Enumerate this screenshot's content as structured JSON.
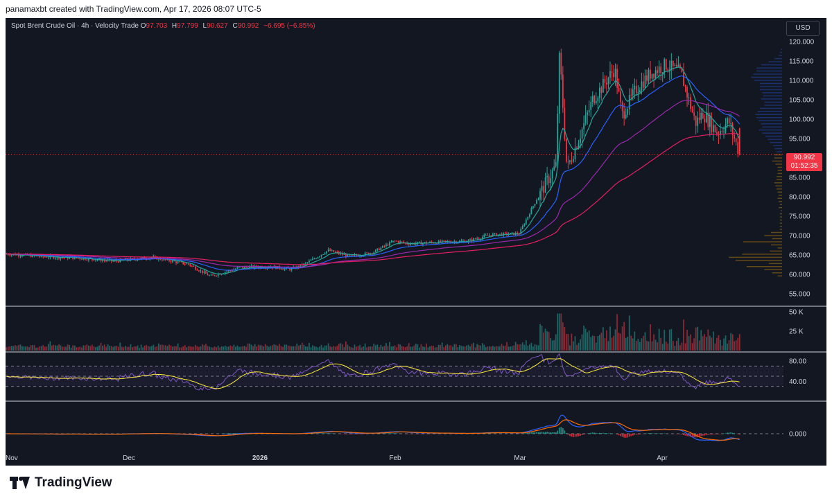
{
  "header": {
    "credit": "panamaxbt created with TradingView.com, Apr 17, 2026 08:07 UTC-5"
  },
  "legend": {
    "symbol": "Spot Brent Crude Oil · 4h · Velocity Trade",
    "o_label": "O",
    "o_value": "97.703",
    "h_label": "H",
    "h_value": "97.799",
    "l_label": "L",
    "l_value": "90.627",
    "c_label": "C",
    "c_value": "90.992",
    "change": "−6.695 (−6.85%)"
  },
  "currency": "USD",
  "last_price": {
    "price": "90.992",
    "countdown": "01:52:35"
  },
  "footer": {
    "brand": "TradingView"
  },
  "colors": {
    "background": "#131722",
    "up": "#26a69a",
    "down": "#f23645",
    "ma_fast": "#26a69a",
    "ma_mid": "#2962ff",
    "ma_slow": "#9c27b0",
    "ma_long": "#e91e63",
    "rsi": "#7e57c2",
    "rsi_ma": "#ffeb3b",
    "macd": "#2962ff",
    "signal": "#ff6d00"
  },
  "chart_data": {
    "type": "candlestick",
    "timeframe": "4h",
    "price_axis": {
      "ticks": [
        "120.000",
        "115.000",
        "110.000",
        "105.000",
        "100.000",
        "95.000",
        "90.000",
        "85.000",
        "80.000",
        "75.000",
        "70.000",
        "65.000",
        "60.000",
        "55.000"
      ],
      "range": [
        52.5,
        122.5
      ]
    },
    "time_axis": {
      "labels": [
        "Nov",
        "Dec",
        "2026",
        "Feb",
        "Mar",
        "Apr"
      ]
    },
    "price_path": [
      [
        0,
        65.3
      ],
      [
        0.05,
        64.6
      ],
      [
        0.1,
        64.2
      ],
      [
        0.15,
        63.4
      ],
      [
        0.2,
        64.4
      ],
      [
        0.25,
        62.6
      ],
      [
        0.28,
        59.5
      ],
      [
        0.32,
        61.8
      ],
      [
        0.36,
        62.0
      ],
      [
        0.39,
        61.3
      ],
      [
        0.41,
        62.8
      ],
      [
        0.44,
        66.2
      ],
      [
        0.47,
        64.6
      ],
      [
        0.5,
        65.6
      ],
      [
        0.53,
        68.6
      ],
      [
        0.55,
        67.9
      ],
      [
        0.6,
        68.4
      ],
      [
        0.63,
        68.6
      ],
      [
        0.66,
        70.2
      ],
      [
        0.7,
        70.5
      ],
      [
        0.72,
        78.0
      ],
      [
        0.75,
        88.0
      ],
      [
        0.755,
        117.0
      ],
      [
        0.765,
        87.0
      ],
      [
        0.785,
        97.0
      ],
      [
        0.8,
        105.0
      ],
      [
        0.83,
        113.0
      ],
      [
        0.84,
        101.0
      ],
      [
        0.86,
        108.0
      ],
      [
        0.88,
        112.0
      ],
      [
        0.9,
        114.0
      ],
      [
        0.92,
        112.0
      ],
      [
        0.94,
        99.0
      ],
      [
        0.95,
        101.5
      ],
      [
        0.97,
        96.5
      ],
      [
        0.985,
        99.5
      ],
      [
        1.0,
        90.99
      ]
    ],
    "volume_axis": {
      "ticks": [
        "50 K",
        "25 K"
      ]
    },
    "rsi": {
      "ticks": [
        "80.00",
        "40.00"
      ],
      "upper": 70,
      "lower": 30
    },
    "macd": {
      "ticks": [
        "0.000"
      ]
    }
  }
}
